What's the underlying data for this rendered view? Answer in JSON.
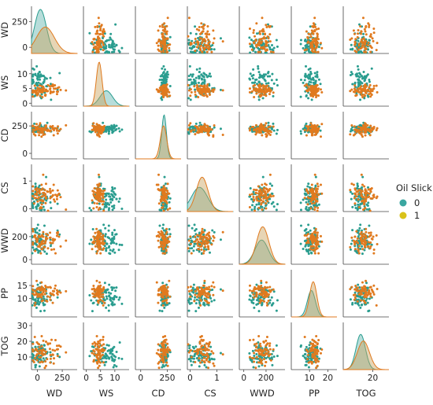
{
  "chart_data": {
    "type": "scatter",
    "subtype": "pairplot",
    "variables": [
      {
        "name": "WD",
        "ticks": [
          "0",
          "250"
        ],
        "tick_values": [
          0,
          250
        ],
        "range": [
          -60,
          400
        ]
      },
      {
        "name": "WS",
        "ticks": [
          "0",
          "5",
          "10"
        ],
        "tick_values": [
          0,
          5,
          10
        ],
        "range": [
          -1,
          15
        ]
      },
      {
        "name": "CD",
        "ticks": [
          "0",
          "250"
        ],
        "tick_values": [
          0,
          250
        ],
        "range": [
          -50,
          380
        ]
      },
      {
        "name": "CS",
        "ticks": [
          "0",
          "1"
        ],
        "tick_values": [
          0,
          1
        ],
        "range": [
          -0.1,
          1.6
        ]
      },
      {
        "name": "WWD",
        "ticks": [
          "0",
          "200"
        ],
        "tick_values": [
          0,
          200
        ],
        "range": [
          -40,
          370
        ]
      },
      {
        "name": "PP",
        "ticks": [
          "10",
          "15"
        ],
        "tick_values": [
          10,
          15
        ],
        "range": [
          3,
          21
        ]
      },
      {
        "name": "TOG",
        "ticks": [
          "10",
          "20",
          "30"
        ],
        "tick_values": [
          10,
          20,
          30
        ],
        "range": [
          2,
          32
        ]
      }
    ],
    "x_tick_override": {
      "PP": {
        "ticks": [
          "10",
          "20"
        ],
        "tick_values": [
          10,
          20
        ],
        "range": [
          0,
          25
        ]
      },
      "TOG": {
        "ticks": [
          "20"
        ],
        "tick_values": [
          20
        ],
        "range": [
          -2,
          32
        ]
      }
    },
    "legend": {
      "title": "Oil Slick",
      "position": "right",
      "entries": [
        {
          "label": "0",
          "color": "#3aa6a0"
        },
        {
          "label": "1",
          "color": "#d9c21a"
        }
      ]
    },
    "series": [
      {
        "name": "0",
        "color": "#2a9d8f",
        "fill": "#5fb3ac"
      },
      {
        "name": "1",
        "color": "#e07a1f",
        "fill": "#c9a25a"
      }
    ],
    "diagonal_kde": {
      "WD": [
        {
          "peak": 30,
          "sd": 60,
          "height": 1.0
        },
        {
          "peak": 80,
          "sd": 90,
          "height": 0.6
        }
      ],
      "WS": [
        {
          "peak": 7,
          "sd": 2.2,
          "height": 0.35
        },
        {
          "peak": 4.5,
          "sd": 1.0,
          "height": 1.0
        }
      ],
      "CD": [
        {
          "peak": 220,
          "sd": 22,
          "height": 1.0
        },
        {
          "peak": 215,
          "sd": 30,
          "height": 0.75
        }
      ],
      "CS": [
        {
          "peak": 0.35,
          "sd": 0.3,
          "height": 0.55
        },
        {
          "peak": 0.45,
          "sd": 0.22,
          "height": 0.78
        }
      ],
      "WWD": [
        {
          "peak": 160,
          "sd": 60,
          "height": 0.55
        },
        {
          "peak": 170,
          "sd": 55,
          "height": 0.85
        }
      ],
      "PP": [
        {
          "peak": 11,
          "sd": 2.2,
          "height": 0.6
        },
        {
          "peak": 12,
          "sd": 2.0,
          "height": 0.8
        }
      ],
      "TOG": [
        {
          "peak": 11,
          "sd": 3.5,
          "height": 0.8
        },
        {
          "peak": 13,
          "sd": 4.5,
          "height": 0.65
        }
      ]
    },
    "grid": false
  }
}
